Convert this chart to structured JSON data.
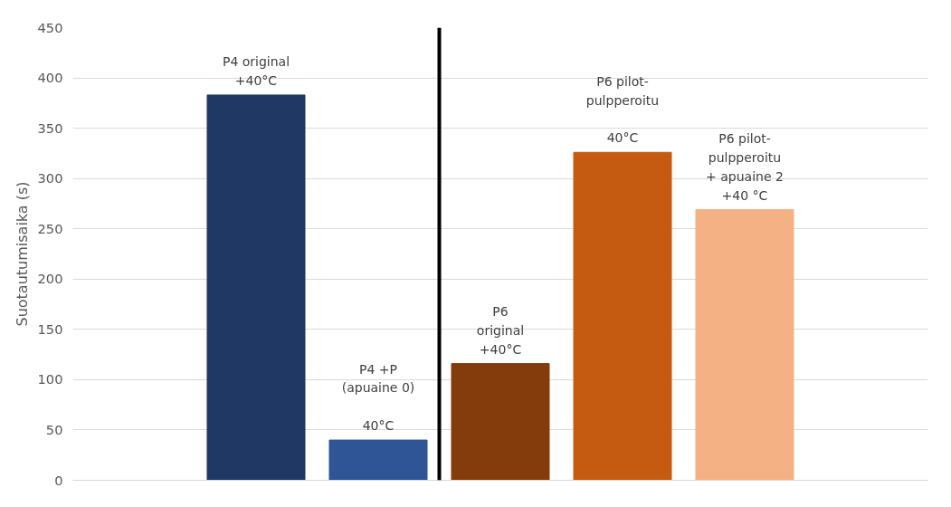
{
  "chart_data": {
    "type": "bar",
    "ylabel": "Suotautumisaika (s)",
    "categories": [
      null,
      null,
      null,
      null,
      null,
      null,
      null
    ],
    "values": [
      null,
      383,
      40,
      116,
      326,
      269,
      null
    ],
    "colors": [
      "#203864",
      "#203864",
      "#2f5597",
      "#843c0c",
      "#c55a11",
      "#f4b183",
      "#f4b183"
    ],
    "ylim": [
      0,
      450
    ],
    "yticks": [
      0,
      50,
      100,
      150,
      200,
      250,
      300,
      350,
      400,
      450
    ],
    "grid": "y",
    "annotations": [
      "P4 original\n+40°C",
      "P4 +P\n(apuaine 0)\n\n40°C",
      "P6\noriginal\n+40°C",
      "P6 pilot-\npulpperoitu\n\n40°C",
      "P6 pilot-\npulpperoitu\n+ apuaine 2\n+40 °C"
    ]
  }
}
